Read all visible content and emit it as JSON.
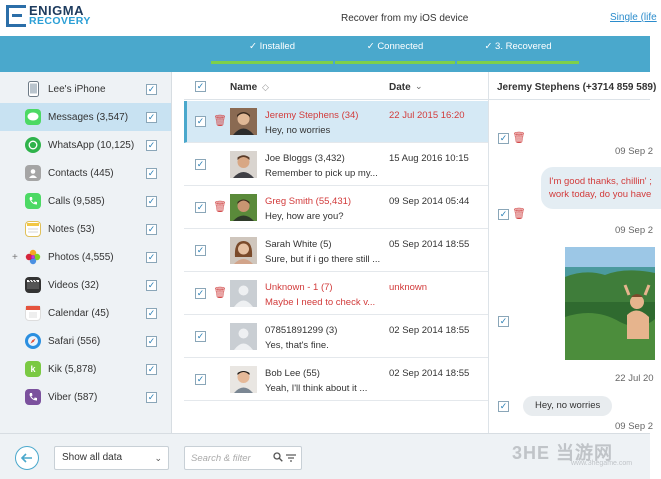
{
  "header": {
    "logo_line1": "ENIGMA",
    "logo_line2": "RECOVERY",
    "title": "Recover from my iOS device",
    "link": "Single (life"
  },
  "steps": [
    {
      "label": "✓ Installed"
    },
    {
      "label": "✓ Connected"
    },
    {
      "label": "✓ 3. Recovered"
    }
  ],
  "sidebar": {
    "items": [
      {
        "label": "Lee's iPhone",
        "icon": "iphone-icon",
        "color": "#6d7a86"
      },
      {
        "label": "Messages (3,547)",
        "icon": "messages-icon",
        "color": "#4cd964"
      },
      {
        "label": "WhatsApp (10,125)",
        "icon": "whatsapp-icon",
        "color": "#2fb34b"
      },
      {
        "label": "Contacts (445)",
        "icon": "contacts-icon",
        "color": "#9a9a9a"
      },
      {
        "label": "Calls (9,585)",
        "icon": "calls-icon",
        "color": "#4cd964"
      },
      {
        "label": "Notes (53)",
        "icon": "notes-icon",
        "color": "#f2c744"
      },
      {
        "label": "Photos (4,555)",
        "icon": "photos-icon",
        "color": "#f08a2c"
      },
      {
        "label": "Videos (32)",
        "icon": "videos-icon",
        "color": "#333333"
      },
      {
        "label": "Calendar (45)",
        "icon": "calendar-icon",
        "color": "#e5533d"
      },
      {
        "label": "Safari (556)",
        "icon": "safari-icon",
        "color": "#2b8fe0"
      },
      {
        "label": "Kik (5,878)",
        "icon": "kik-icon",
        "color": "#7ac943"
      },
      {
        "label": "Viber (587)",
        "icon": "viber-icon",
        "color": "#7b519d"
      }
    ]
  },
  "list": {
    "col_name": "Name",
    "col_date": "Date",
    "rows": [
      {
        "name": "Jeremy Stephens (34)",
        "snippet": "Hey, no worries",
        "date": "22 Jul 2015 16:20"
      },
      {
        "name": "Joe Bloggs (3,432)",
        "snippet": "Remember to pick up my...",
        "date": "15 Aug 2016 10:15"
      },
      {
        "name": "Greg Smith (55,431)",
        "snippet": "Hey, how are you?",
        "date": "09 Sep 2014 05:44"
      },
      {
        "name": "Sarah White (5)",
        "snippet": "Sure, but if i go there still ...",
        "date": "05 Sep 2014 18:55"
      },
      {
        "name": "Unknown - 1 (7)",
        "snippet": "Maybe I need to check v...",
        "date": "unknown"
      },
      {
        "name": "07851891299 (3)",
        "snippet": "Yes, that's fine.",
        "date": "02 Sep 2014 18:55"
      },
      {
        "name": "Bob Lee (55)",
        "snippet": "Yeah, I'll think about it ...",
        "date": "02 Sep 2014 18:55"
      }
    ]
  },
  "convo": {
    "title": "Jeremy Stephens (+3714 859 589)",
    "date1": "09 Sep 2",
    "msg1_line1": "I'm good thanks, chillin' ;",
    "msg1_line2": "work today, do you have",
    "date2": "09 Sep 2",
    "date3": "22 Jul 20",
    "date4": "09 Sep 2",
    "msg_in": "Hey, no worries"
  },
  "footer": {
    "select_value": "Show all data",
    "search_placeholder": "Search & filter"
  },
  "watermark": {
    "main": "3HE 当游网",
    "sub": "www.3hegame.com"
  }
}
